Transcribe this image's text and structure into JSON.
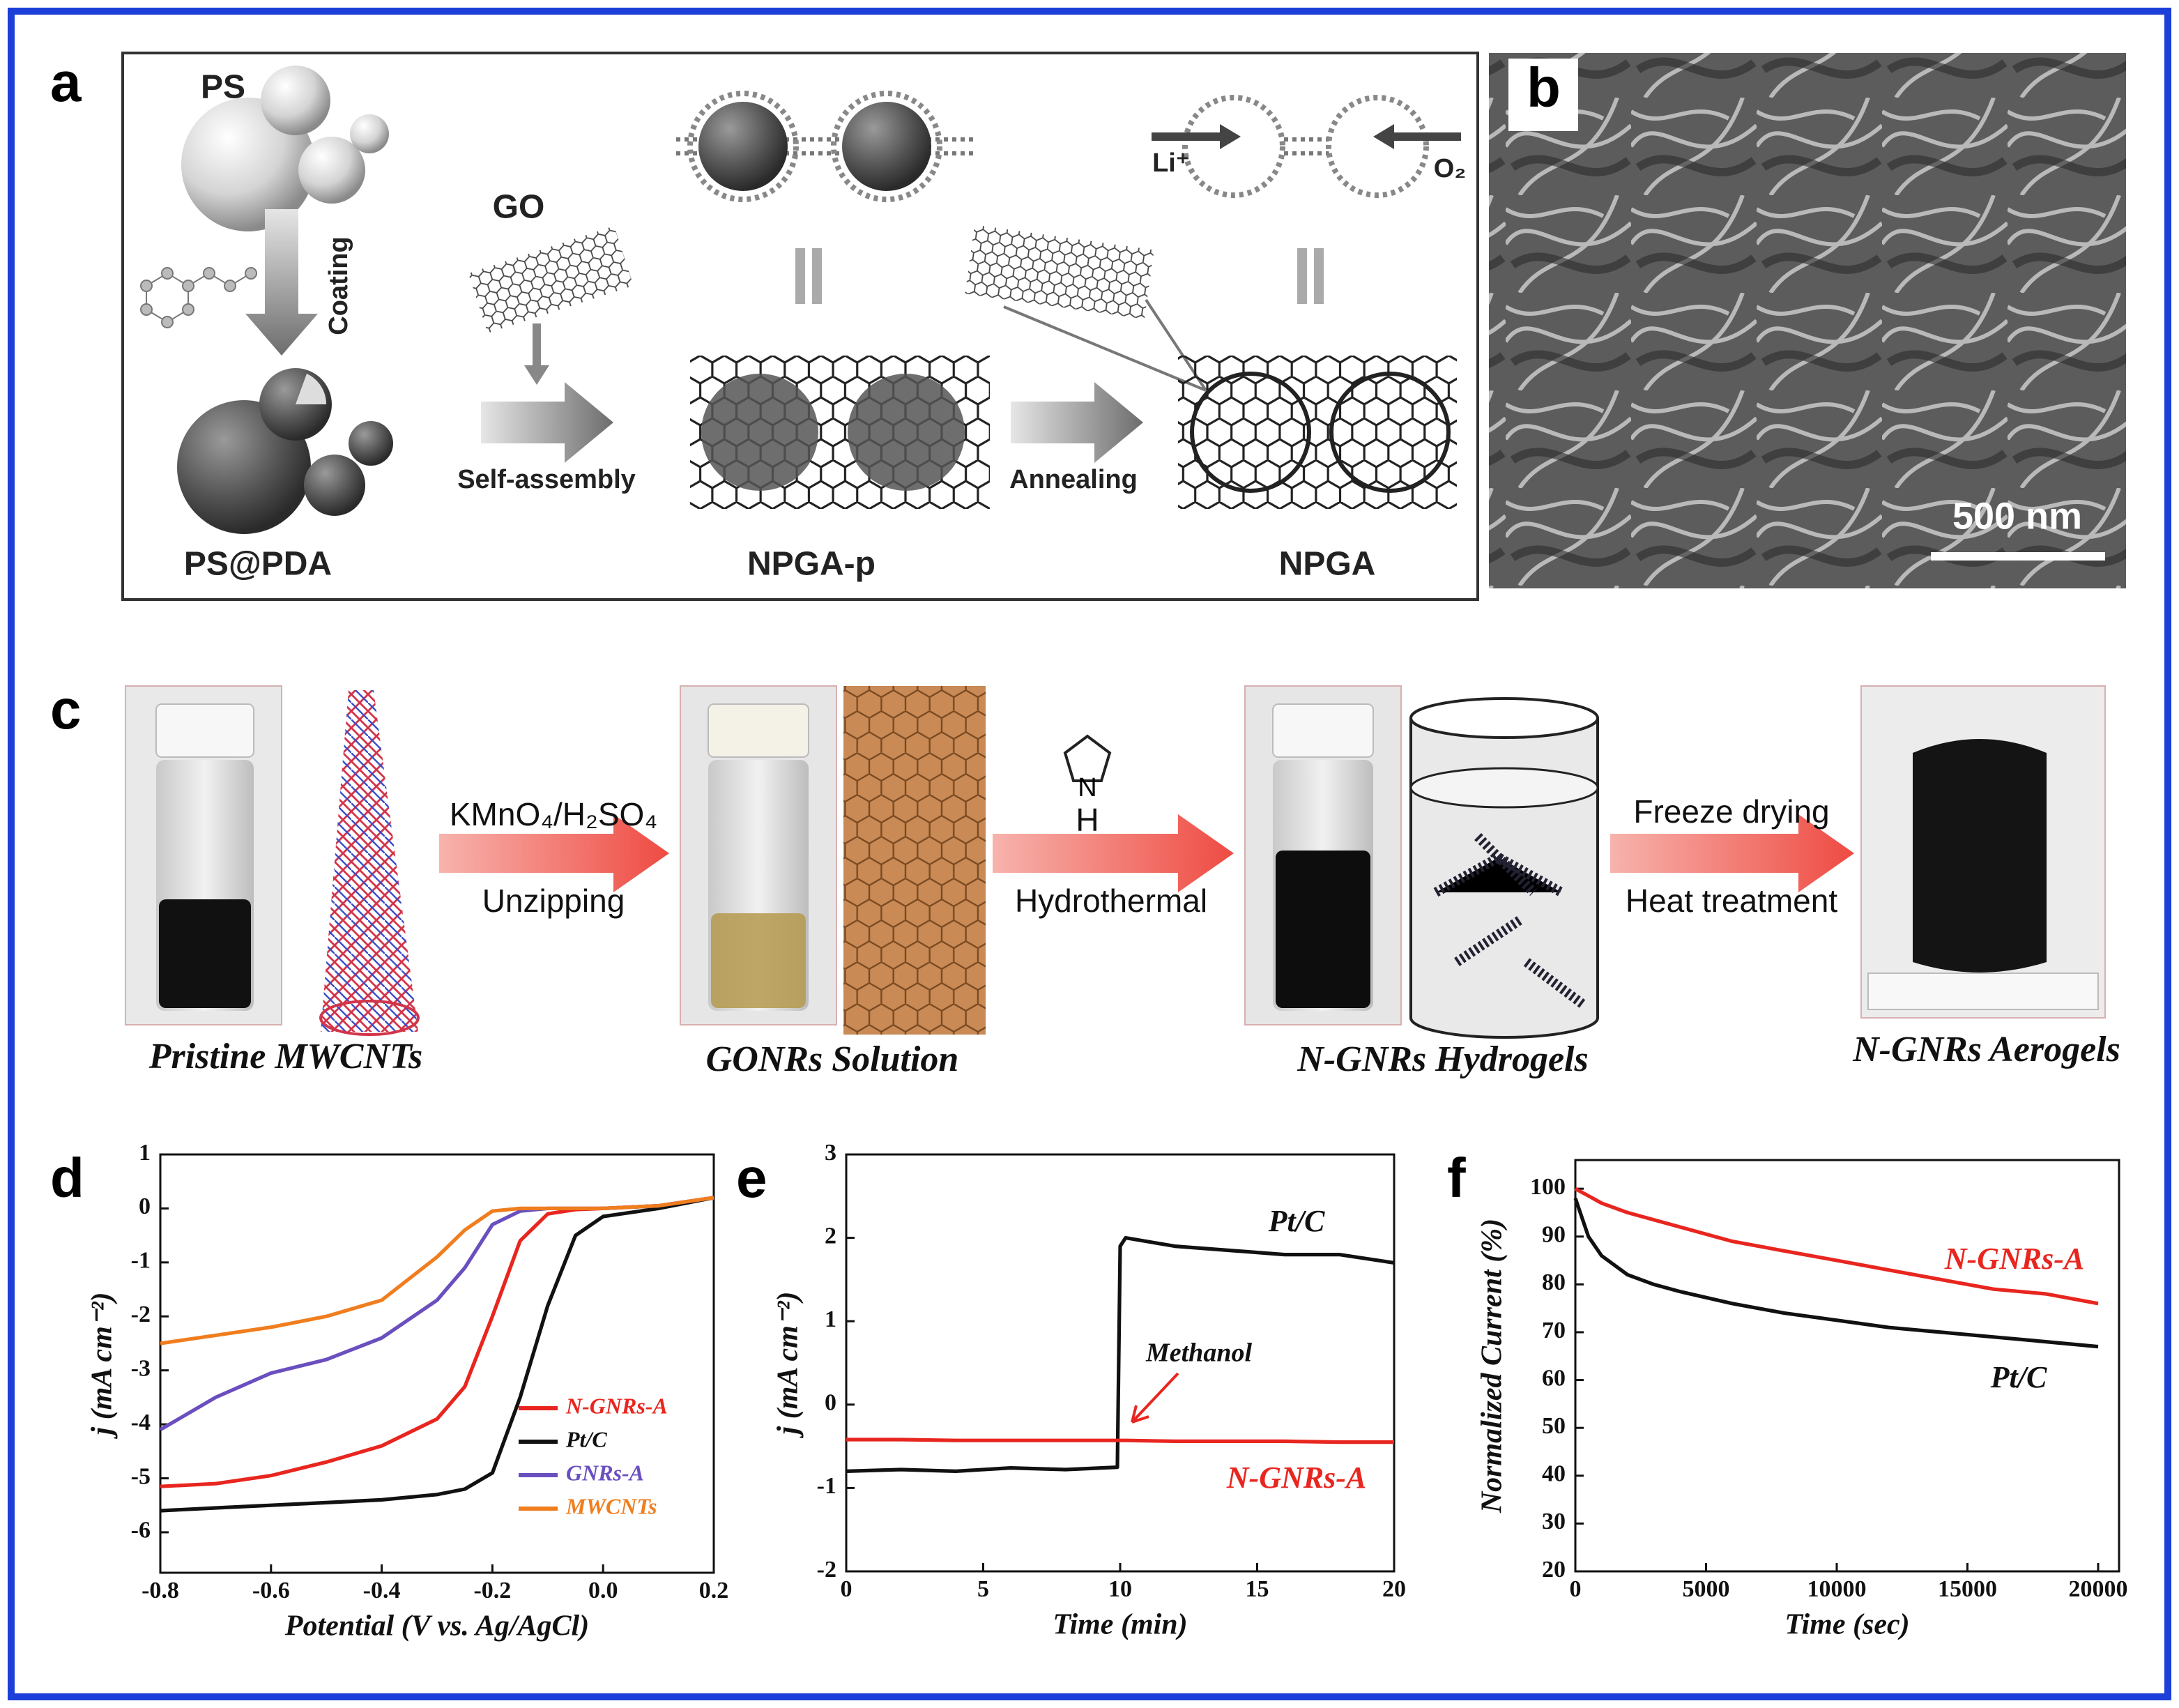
{
  "panel_labels": [
    "a",
    "b",
    "c",
    "d",
    "e",
    "f"
  ],
  "panel_a": {
    "ps": "PS",
    "coating": "Coating",
    "ps_pda": "PS@PDA",
    "go": "GO",
    "self_assembly": "Self-assembly",
    "npga_p": "NPGA-p",
    "annealing": "Annealing",
    "npga": "NPGA",
    "li": "Li⁺",
    "o2": "O₂"
  },
  "panel_b": {
    "scale_bar": "500 nm"
  },
  "panel_c": {
    "step1": "KMnO₄/H₂SO₄",
    "step1b": "Unzipping",
    "pyrrole_n": "N",
    "pyrrole_h": "H",
    "step2": "Hydrothermal",
    "step3": "Freeze drying",
    "step3b": "Heat treatment",
    "captions": [
      "Pristine MWCNTs",
      "GONRs Solution",
      "N-GNRs Hydrogels",
      "N-GNRs Aerogels"
    ]
  },
  "chart_data": [
    {
      "type": "line",
      "x_label": "Potential (V vs. Ag/AgCl)",
      "y_label": "j (mA cm⁻²)",
      "x": [
        -0.8,
        -0.7,
        -0.6,
        -0.5,
        -0.4,
        -0.3,
        -0.25,
        -0.2,
        -0.15,
        -0.1,
        -0.05,
        0,
        0.1,
        0.2
      ],
      "series": [
        {
          "name": "N-GNRs-A",
          "color": "#e8261f",
          "values": [
            -5.15,
            -5.1,
            -4.95,
            -4.7,
            -4.4,
            -3.9,
            -3.3,
            -2.0,
            -0.6,
            -0.1,
            -0.02,
            0,
            0.05,
            0.2
          ]
        },
        {
          "name": "Pt/C",
          "color": "#111111",
          "values": [
            -5.6,
            -5.55,
            -5.5,
            -5.45,
            -5.4,
            -5.3,
            -5.2,
            -4.9,
            -3.5,
            -1.8,
            -0.5,
            -0.15,
            0,
            0.2
          ]
        },
        {
          "name": "GNRs-A",
          "color": "#6a4fbf",
          "values": [
            -4.1,
            -3.5,
            -3.05,
            -2.8,
            -2.4,
            -1.7,
            -1.1,
            -0.3,
            -0.05,
            0,
            0,
            0,
            0.05,
            0.2
          ]
        },
        {
          "name": "MWCNTs",
          "color": "#f07d1e",
          "values": [
            -2.5,
            -2.35,
            -2.2,
            -2.0,
            -1.7,
            -0.9,
            -0.4,
            -0.05,
            0,
            0,
            0,
            0,
            0.05,
            0.2
          ]
        }
      ],
      "xlim": [
        -0.8,
        0.2
      ],
      "xticks": [
        -0.8,
        -0.6,
        -0.4,
        -0.2,
        {
          "value": 0,
          "label": "0.0"
        },
        0.2
      ],
      "ylim": [
        -6.75,
        1
      ],
      "yticks": [
        -6,
        -5,
        -4,
        -3,
        -2,
        -1,
        0,
        1
      ],
      "legend": "lower right"
    },
    {
      "type": "line",
      "x_label": "Time (min)",
      "y_label": "j (mA cm⁻²)",
      "annotation": "Methanol",
      "x": [
        0,
        2,
        4,
        6,
        8,
        9.9,
        10,
        10.2,
        12,
        14,
        16,
        18,
        20
      ],
      "series": [
        {
          "name": "Pt/C",
          "color": "#111111",
          "values": [
            -0.8,
            -0.78,
            -0.8,
            -0.76,
            -0.78,
            -0.75,
            1.9,
            2.0,
            1.9,
            1.85,
            1.8,
            1.8,
            1.7
          ]
        },
        {
          "name": "N-GNRs-A",
          "color": "#e8261f",
          "values": [
            -0.42,
            -0.42,
            -0.43,
            -0.43,
            -0.43,
            -0.43,
            -0.43,
            -0.43,
            -0.44,
            -0.44,
            -0.44,
            -0.45,
            -0.45
          ]
        }
      ],
      "xlim": [
        0,
        20
      ],
      "xticks": [
        0,
        5,
        10,
        15,
        20
      ],
      "ylim": [
        -2,
        3
      ],
      "yticks": [
        -2,
        -1,
        0,
        1,
        2,
        3
      ]
    },
    {
      "type": "line",
      "x_label": "Time (sec)",
      "y_label": "Normalized Current (%)",
      "x": [
        0,
        500,
        1000,
        2000,
        3000,
        4000,
        6000,
        8000,
        10000,
        12000,
        14000,
        16000,
        18000,
        20000
      ],
      "series": [
        {
          "name": "N-GNRs-A",
          "color": "#e8261f",
          "values": [
            100,
            98.5,
            97,
            95,
            93.5,
            92,
            89,
            87,
            85,
            83,
            81,
            79,
            78,
            76
          ]
        },
        {
          "name": "Pt/C",
          "color": "#111111",
          "values": [
            98,
            90,
            86,
            82,
            80,
            78.5,
            76,
            74,
            72.5,
            71,
            70,
            69,
            68,
            67
          ]
        }
      ],
      "xlim": [
        0,
        20800
      ],
      "xticks": [
        0,
        5000,
        10000,
        15000,
        20000
      ],
      "ylim": [
        20,
        106
      ],
      "yticks": [
        20,
        30,
        40,
        50,
        60,
        70,
        80,
        90,
        100
      ]
    }
  ]
}
